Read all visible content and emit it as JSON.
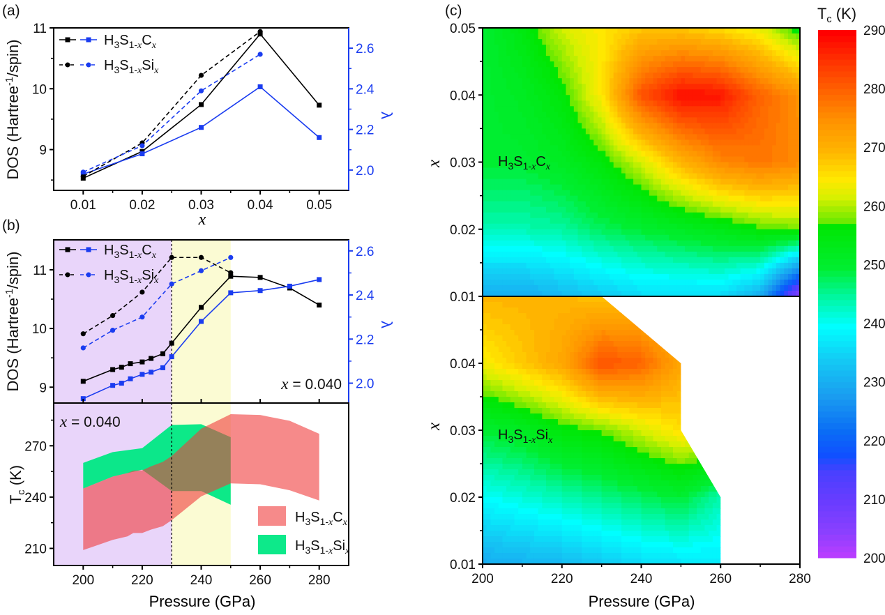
{
  "panel_labels": {
    "a": "(a)",
    "b": "(b)",
    "c": "(c)"
  },
  "legend": {
    "carbon": "H3S1-xCx",
    "silicon": "H3S1-xSix"
  },
  "annotation_x": "x = 0.040",
  "colors": {
    "dos_black": "#000000",
    "lambda_blue": "#1a3cf0",
    "region_1": "#e9d5fa",
    "region_2": "#fbfbd3",
    "band_carbon": "#f37070",
    "band_silicon": "#00e884"
  },
  "chart_data": [
    {
      "id": "a",
      "type": "line",
      "xlabel": "x",
      "ylabel": "DOS (Hartree-1/spin)",
      "y2label": "λ",
      "xlim": [
        0.005,
        0.055
      ],
      "ylim": [
        8.33,
        11.0
      ],
      "y2lim": [
        1.9,
        2.7
      ],
      "xticks": [
        "0.01",
        "0.02",
        "0.03",
        "0.04",
        "0.05"
      ],
      "yticks": [
        "9",
        "10",
        "11"
      ],
      "y2ticks": [
        "2.0",
        "2.2",
        "2.4",
        "2.6"
      ],
      "legend_placement": "top-left",
      "series": [
        {
          "name": "H3S1-xCx",
          "axis": "left",
          "style": "solid-square",
          "color": "#000000",
          "x": [
            0.01,
            0.02,
            0.03,
            0.04,
            0.05
          ],
          "y": [
            8.53,
            8.97,
            9.74,
            10.9,
            9.73
          ]
        },
        {
          "name": "H3S1-xCx",
          "axis": "right",
          "style": "solid-square",
          "color": "#1a3cf0",
          "x": [
            0.01,
            0.02,
            0.03,
            0.04,
            0.05
          ],
          "y": [
            1.98,
            2.08,
            2.21,
            2.41,
            2.16
          ]
        },
        {
          "name": "H3S1-xSix",
          "axis": "left",
          "style": "dashed-circle",
          "color": "#000000",
          "x": [
            0.01,
            0.02,
            0.03,
            0.04
          ],
          "y": [
            8.56,
            9.11,
            10.22,
            10.94
          ]
        },
        {
          "name": "H3S1-xSix",
          "axis": "right",
          "style": "dashed-circle",
          "color": "#1a3cf0",
          "x": [
            0.01,
            0.02,
            0.03,
            0.04
          ],
          "y": [
            1.99,
            2.12,
            2.39,
            2.57
          ]
        }
      ]
    },
    {
      "id": "b-top",
      "type": "line",
      "ylabel": "DOS (Hartree-1/spin)",
      "y2label": "λ",
      "xlim": [
        190,
        290
      ],
      "ylim": [
        8.73,
        11.51
      ],
      "y2lim": [
        1.91,
        2.65
      ],
      "yticks": [
        "9",
        "10",
        "11"
      ],
      "y2ticks": [
        "2.0",
        "2.2",
        "2.4",
        "2.6"
      ],
      "regions": [
        [
          190,
          230
        ],
        [
          230,
          250
        ]
      ],
      "divider": 230,
      "legend_placement": "top-left",
      "series": [
        {
          "name": "H3S1-xCx",
          "axis": "left",
          "style": "solid-square",
          "color": "#000000",
          "x": [
            200,
            210,
            213,
            216,
            220,
            223,
            227,
            230,
            240,
            250,
            260,
            270,
            280
          ],
          "y": [
            9.1,
            9.3,
            9.34,
            9.4,
            9.43,
            9.49,
            9.57,
            9.75,
            10.36,
            10.89,
            10.87,
            10.69,
            10.4
          ]
        },
        {
          "name": "H3S1-xCx",
          "axis": "right",
          "style": "solid-square",
          "color": "#1a3cf0",
          "x": [
            200,
            210,
            213,
            216,
            220,
            223,
            227,
            230,
            240,
            250,
            260,
            270,
            280
          ],
          "y": [
            1.93,
            1.99,
            2.0,
            2.02,
            2.04,
            2.05,
            2.07,
            2.12,
            2.28,
            2.41,
            2.42,
            2.44,
            2.47
          ]
        },
        {
          "name": "H3S1-xSix",
          "axis": "left",
          "style": "dashed-circle",
          "color": "#000000",
          "x": [
            200,
            210,
            220,
            230,
            240,
            250
          ],
          "y": [
            9.91,
            10.22,
            10.62,
            11.21,
            11.21,
            10.95
          ]
        },
        {
          "name": "H3S1-xSix",
          "axis": "right",
          "style": "dashed-circle",
          "color": "#1a3cf0",
          "x": [
            200,
            210,
            220,
            230,
            240,
            250
          ],
          "y": [
            2.16,
            2.24,
            2.3,
            2.45,
            2.51,
            2.57
          ]
        }
      ]
    },
    {
      "id": "b-bottom",
      "type": "area",
      "xlabel": "Pressure (GPa)",
      "ylabel": "Tc (K)",
      "xlim": [
        190,
        290
      ],
      "ylim": [
        200,
        295
      ],
      "xticks": [
        "200",
        "220",
        "240",
        "260",
        "280"
      ],
      "yticks": [
        "210",
        "240",
        "270"
      ],
      "legend_placement": "bottom-right",
      "series": [
        {
          "name": "H3S1-xSix",
          "color": "#00e884",
          "x": [
            200,
            210,
            220,
            230,
            240,
            250
          ],
          "lower": [
            245,
            252,
            256,
            243.5,
            243.5,
            235.5
          ],
          "upper": [
            260,
            266.3,
            268.6,
            282.2,
            282.6,
            275
          ]
        },
        {
          "name": "H3S1-xCx",
          "color": "#f03c3c",
          "x": [
            200,
            210,
            215,
            217,
            220,
            223,
            227,
            230,
            240,
            250,
            260,
            270,
            280
          ],
          "lower": [
            209,
            215,
            217,
            219,
            219,
            221,
            223,
            226.5,
            240.4,
            248,
            247.5,
            244,
            238
          ],
          "upper": [
            245,
            252,
            254,
            255.5,
            255.6,
            258,
            260.6,
            264,
            280,
            288.5,
            288,
            284.6,
            277
          ]
        }
      ]
    },
    {
      "id": "c",
      "type": "heatmap",
      "xlabel": "Pressure (GPa)",
      "ylabel": "x",
      "colorbar_label": "Tc (K)",
      "xlim": [
        200,
        280
      ],
      "clim": [
        200,
        290
      ],
      "xticks": [
        "200",
        "220",
        "240",
        "260",
        "280"
      ],
      "colorbar_ticks": [
        "290",
        "280",
        "270",
        "260",
        "250",
        "240",
        "230",
        "220",
        "210",
        "200"
      ],
      "pressure": [
        200,
        210,
        220,
        230,
        240,
        250,
        260,
        270,
        280
      ],
      "panels": [
        {
          "label": "H3S1-xCx",
          "x_values": [
            0.05,
            0.04,
            0.03,
            0.02,
            0.01
          ],
          "yticks": [
            "0.01",
            "0.02",
            "0.03",
            "0.04",
            "0.05"
          ],
          "tc": [
            [
              250,
              255,
              262,
              265,
              268,
              268,
              266,
              263,
              255
            ],
            [
              250,
              252,
              256,
              265,
              282,
              289,
              288,
              280,
              275
            ],
            [
              250,
              250,
              252,
              256,
              262,
              270,
              276,
              278,
              276
            ],
            [
              244,
              244,
              245,
              248,
              250,
              252,
              254,
              257,
              258
            ],
            [
              230,
              230,
              232,
              234,
              236,
              236,
              236,
              230,
              205
            ]
          ]
        },
        {
          "label": "H3S1-xSix",
          "x_values": [
            0.05,
            0.04,
            0.03,
            0.02,
            0.01
          ],
          "yticks": [
            "0.01",
            "0.02",
            "0.03",
            "0.04"
          ],
          "tc": [
            [
              270,
              270,
              270,
              268,
              null,
              null,
              null,
              null,
              null
            ],
            [
              264,
              268,
              272,
              282,
              280,
              272,
              null,
              null,
              null
            ],
            [
              250,
              252,
              256,
              258,
              262,
              266,
              null,
              null,
              null
            ],
            [
              240,
              242,
              244,
              246,
              248,
              250,
              244,
              null,
              null
            ],
            [
              230,
              231,
              232,
              234,
              236,
              237,
              238,
              null,
              null
            ]
          ]
        }
      ]
    }
  ]
}
